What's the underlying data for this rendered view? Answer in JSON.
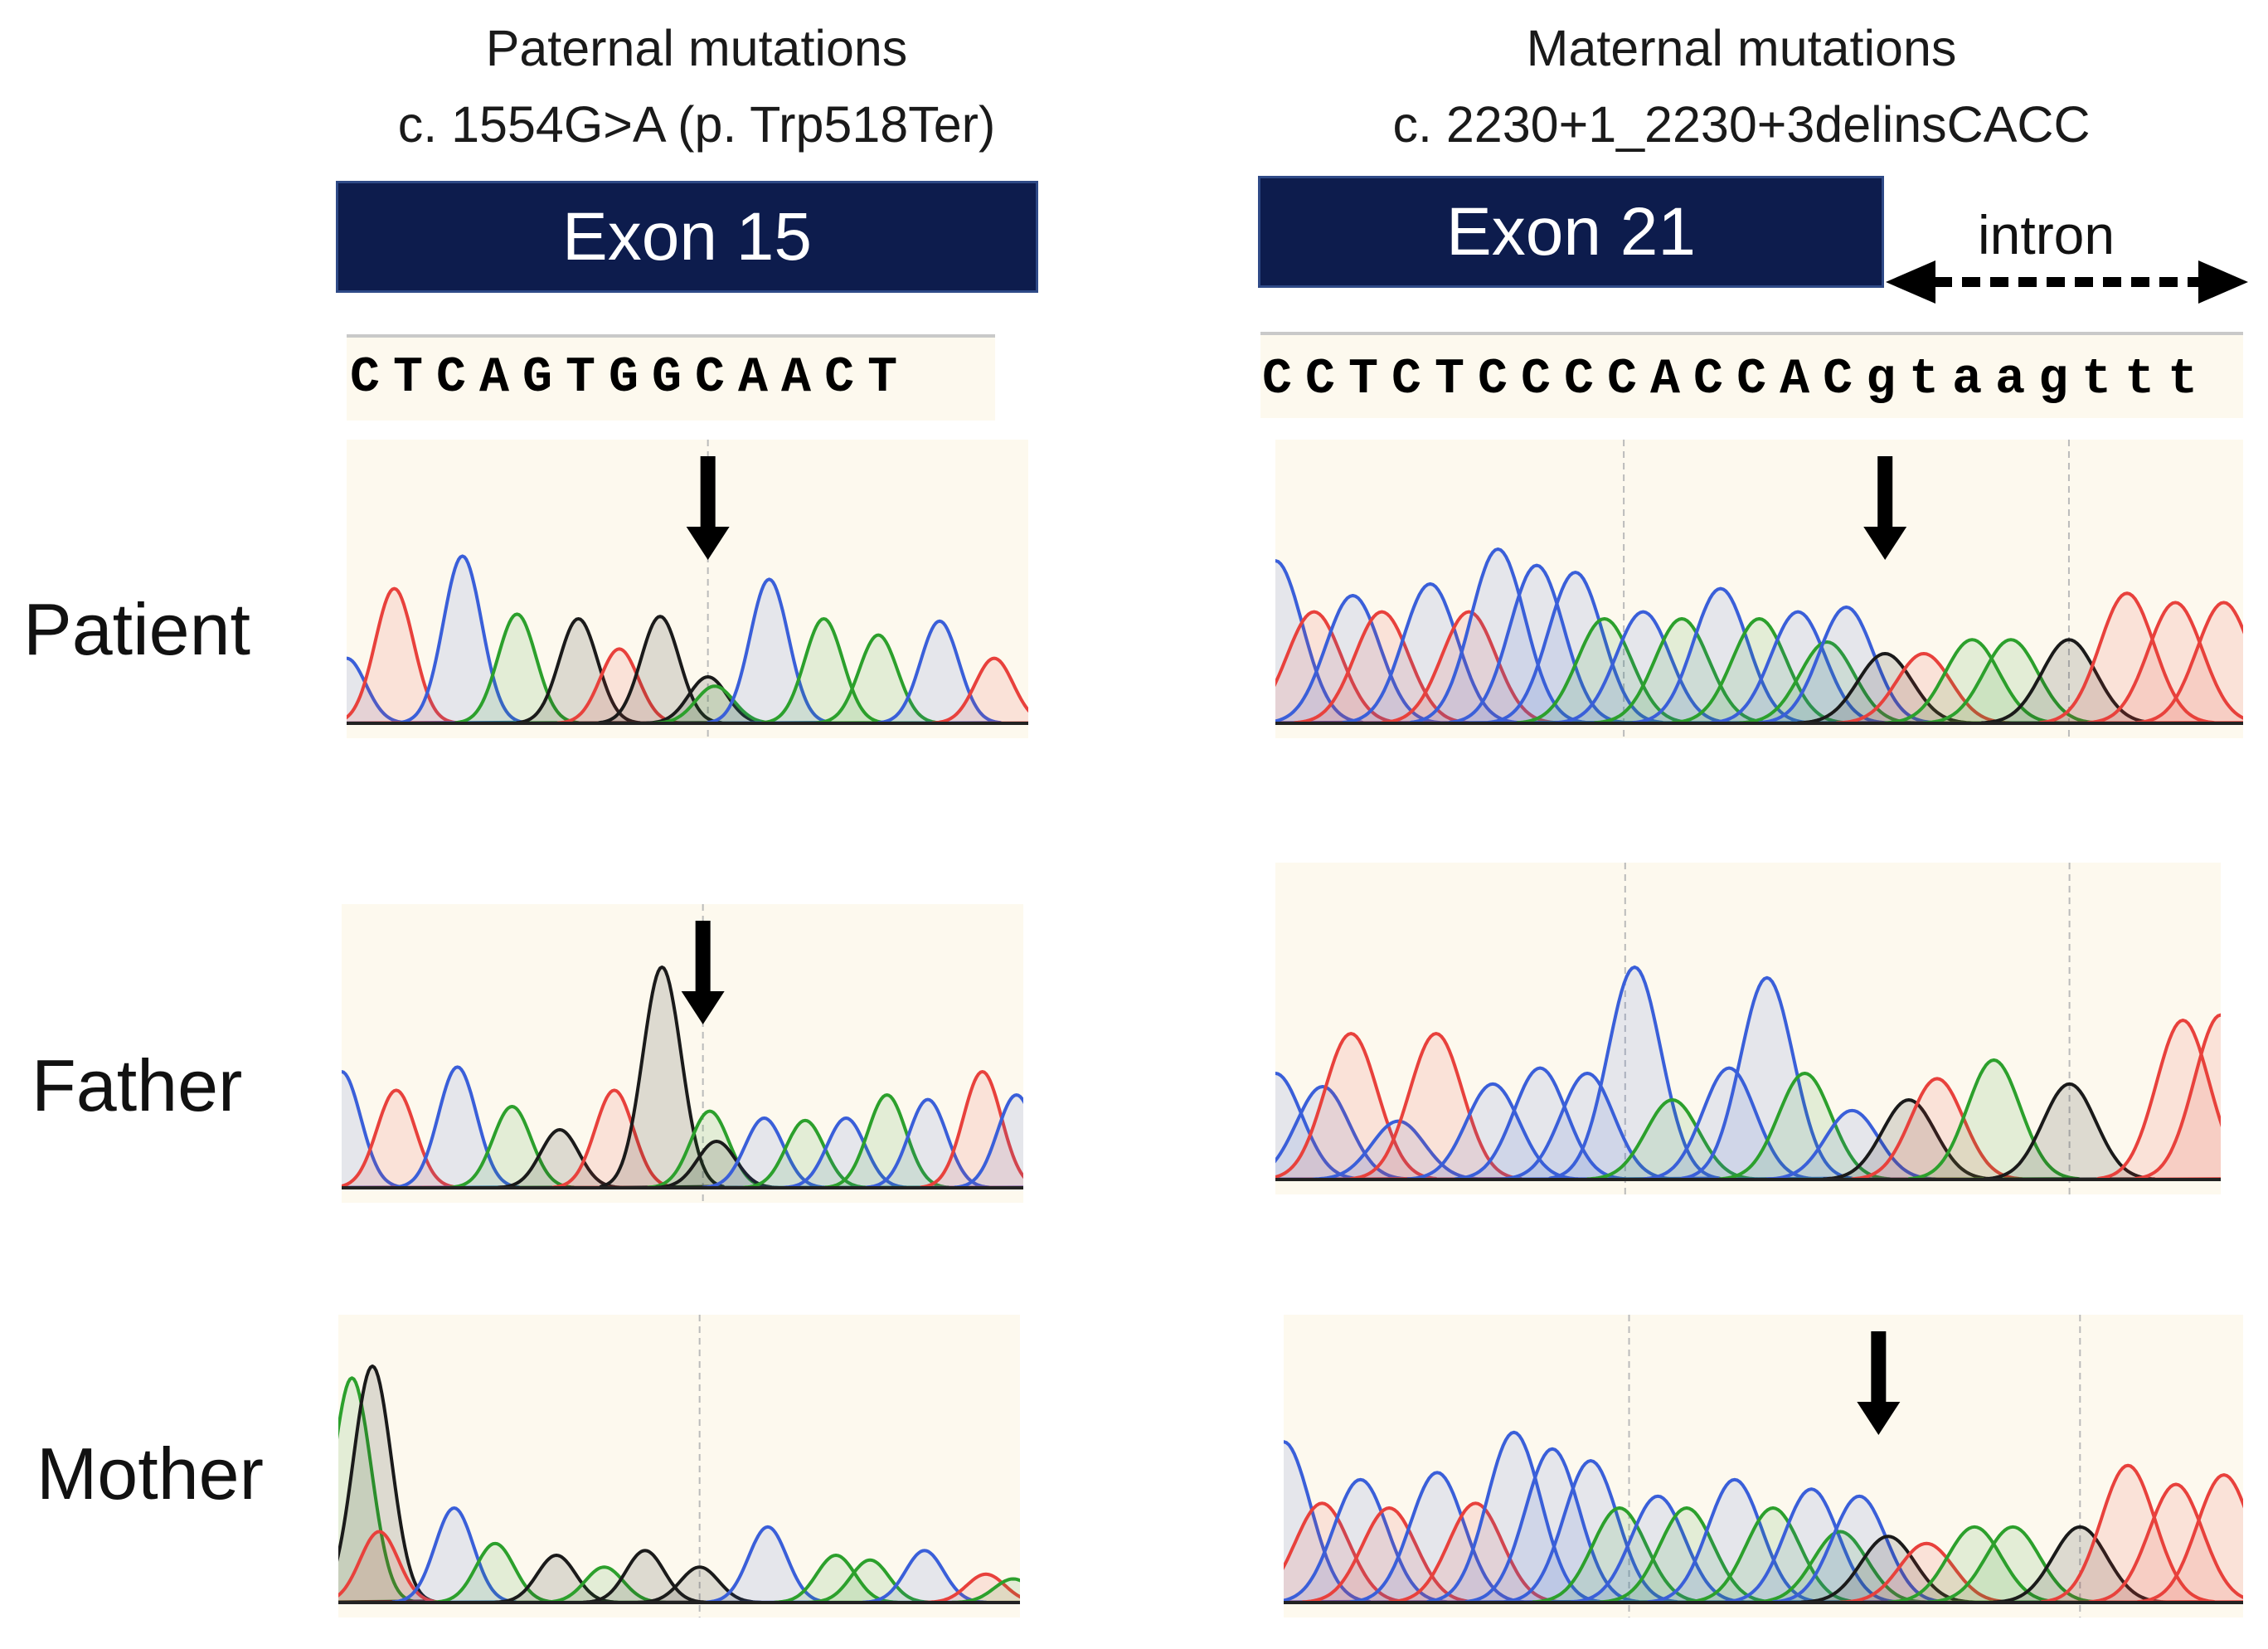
{
  "left_panel": {
    "title_line1": "Paternal mutations",
    "title_line2": "c. 1554G>A (p. Trp518Ter)",
    "exon_label": "Exon 15",
    "sequence": "CTCAGTGGCAACT"
  },
  "right_panel": {
    "title_line1": "Maternal mutations",
    "title_line2": "c. 2230+1_2230+3delinsCACC",
    "exon_label": "Exon 21",
    "intron_label": "intron",
    "sequence_exon": "CCTCTCCCCACCAC",
    "sequence_intron": "gtaagttt"
  },
  "rows": [
    {
      "label": "Patient"
    },
    {
      "label": "Father"
    },
    {
      "label": "Mother"
    }
  ],
  "colors": {
    "exon_fill": "#0d1c4d",
    "trace_A": "#2ca02c",
    "trace_C": "#3a5fd9",
    "trace_G": "#1a1a1a",
    "trace_T": "#e8413c",
    "chromatogram_bg": "#fdf9ee"
  }
}
